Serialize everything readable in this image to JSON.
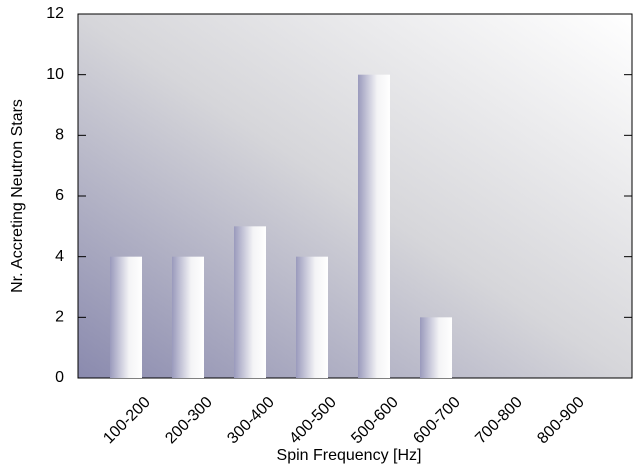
{
  "chart_data": {
    "type": "bar",
    "x_label": "Spin Frequency [Hz]",
    "y_label": "Nr. Accreting Neutron Stars",
    "categories": [
      "100-200",
      "200-300",
      "300-400",
      "400-500",
      "500-600",
      "600-700",
      "700-800",
      "800-900"
    ],
    "values": [
      4,
      4,
      5,
      4,
      10,
      2,
      0,
      0
    ],
    "ylim": [
      0,
      12
    ],
    "yticks": [
      0,
      2,
      4,
      6,
      8,
      10,
      12
    ]
  }
}
